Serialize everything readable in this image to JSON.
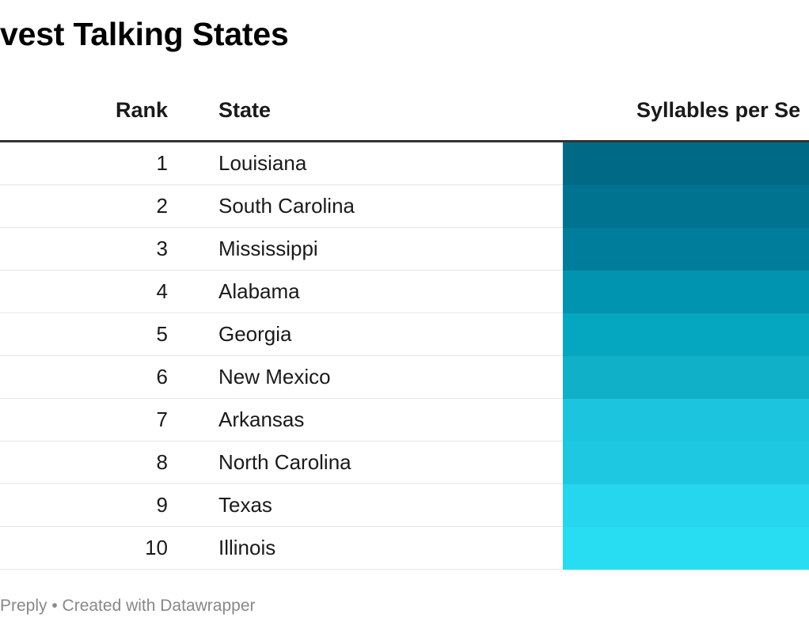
{
  "title": "vest Talking States",
  "footer": "Preply • Created with Datawrapper",
  "chart_data": {
    "type": "table",
    "columns": [
      "Rank",
      "State",
      "Syllables per Se"
    ],
    "rows": [
      {
        "rank": "1",
        "state": "Louisiana",
        "color": "#006a86"
      },
      {
        "rank": "2",
        "state": "South Carolina",
        "color": "#007390"
      },
      {
        "rank": "3",
        "state": "Mississippi",
        "color": "#007d9a"
      },
      {
        "rank": "4",
        "state": "Alabama",
        "color": "#0094b0"
      },
      {
        "rank": "5",
        "state": "Georgia",
        "color": "#05a6c0"
      },
      {
        "rank": "6",
        "state": "New Mexico",
        "color": "#10b0c8"
      },
      {
        "rank": "7",
        "state": "Arkansas",
        "color": "#1cc5dd"
      },
      {
        "rank": "8",
        "state": "North Carolina",
        "color": "#1dc8e0"
      },
      {
        "rank": "9",
        "state": "Texas",
        "color": "#25d6ee"
      },
      {
        "rank": "10",
        "state": "Illinois",
        "color": "#28dcf2"
      }
    ]
  }
}
